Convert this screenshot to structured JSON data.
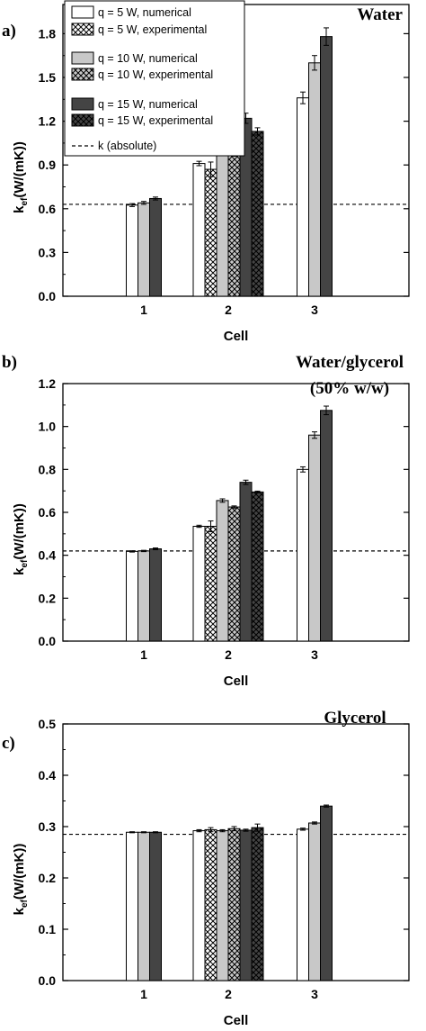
{
  "legend": {
    "entries": [
      {
        "label": "q = 5 W, numerical",
        "fill": "#ffffff",
        "pattern": false
      },
      {
        "label": "q = 5 W, experimental",
        "fill": "#ffffff",
        "pattern": true
      },
      {
        "label": "q = 10 W, numerical",
        "fill": "#c8c8c8",
        "pattern": false
      },
      {
        "label": "q = 10 W, experimental",
        "fill": "#c8c8c8",
        "pattern": true
      },
      {
        "label": "q = 15 W, numerical",
        "fill": "#444444",
        "pattern": false
      },
      {
        "label": "q  = 15 W, experimental",
        "fill": "#444444",
        "pattern": true
      },
      {
        "label": "k (absolute)",
        "line": true
      }
    ]
  },
  "colors": {
    "q5": "#ffffff",
    "q10": "#c8c8c8",
    "q15": "#444444",
    "axis": "#000000"
  },
  "chart_data": [
    {
      "type": "bar",
      "panel_label": "a)",
      "title": "Water",
      "xlabel": "Cell",
      "ylabel_main": "k",
      "ylabel_sub": "ef",
      "ylabel_rest": "(W/(mK))",
      "categories": [
        "1",
        "2",
        "3"
      ],
      "ylim": [
        0,
        2.0
      ],
      "yticks": [
        "0.0",
        "0.3",
        "0.6",
        "0.9",
        "1.2",
        "1.5",
        "1.8"
      ],
      "ytick_values": [
        0,
        0.3,
        0.6,
        0.9,
        1.2,
        1.5,
        1.8
      ],
      "reference_line": 0.63,
      "groups": [
        [
          {
            "series": "q5num",
            "value": 0.625,
            "err": 0.01
          },
          {
            "series": "q10num",
            "value": 0.64,
            "err": 0.01
          },
          {
            "series": "q15num",
            "value": 0.67,
            "err": 0.01
          }
        ],
        [
          {
            "series": "q5num",
            "value": 0.91,
            "err": 0.015
          },
          {
            "series": "q5exp",
            "value": 0.87,
            "err": 0.05
          },
          {
            "series": "q10num",
            "value": 1.09,
            "err": 0.025
          },
          {
            "series": "q10exp",
            "value": 1.03,
            "err": 0.07
          },
          {
            "series": "q15num",
            "value": 1.22,
            "err": 0.035
          },
          {
            "series": "q15exp",
            "value": 1.13,
            "err": 0.025
          }
        ],
        [
          {
            "series": "q5num",
            "value": 1.36,
            "err": 0.04
          },
          {
            "series": "q10num",
            "value": 1.6,
            "err": 0.05
          },
          {
            "series": "q15num",
            "value": 1.78,
            "err": 0.06
          }
        ]
      ]
    },
    {
      "type": "bar",
      "panel_label": "b)",
      "title": "Water/glycerol",
      "subtitle": "(50% w/w)",
      "xlabel": "Cell",
      "ylabel_main": "k",
      "ylabel_sub": "ef",
      "ylabel_rest": "(W/(mK))",
      "categories": [
        "1",
        "2",
        "3"
      ],
      "ylim": [
        0,
        1.2
      ],
      "yticks": [
        "0.0",
        "0.2",
        "0.4",
        "0.6",
        "0.8",
        "1.0",
        "1.2"
      ],
      "ytick_values": [
        0,
        0.2,
        0.4,
        0.6,
        0.8,
        1.0,
        1.2
      ],
      "reference_line": 0.42,
      "groups": [
        [
          {
            "series": "q5num",
            "value": 0.418,
            "err": 0.003
          },
          {
            "series": "q10num",
            "value": 0.42,
            "err": 0.003
          },
          {
            "series": "q15num",
            "value": 0.43,
            "err": 0.004
          }
        ],
        [
          {
            "series": "q5num",
            "value": 0.535,
            "err": 0.005
          },
          {
            "series": "q5exp",
            "value": 0.535,
            "err": 0.025
          },
          {
            "series": "q10num",
            "value": 0.655,
            "err": 0.008
          },
          {
            "series": "q10exp",
            "value": 0.625,
            "err": 0.005
          },
          {
            "series": "q15num",
            "value": 0.74,
            "err": 0.01
          },
          {
            "series": "q15exp",
            "value": 0.695,
            "err": 0.004
          }
        ],
        [
          {
            "series": "q5num",
            "value": 0.8,
            "err": 0.012
          },
          {
            "series": "q10num",
            "value": 0.96,
            "err": 0.015
          },
          {
            "series": "q15num",
            "value": 1.075,
            "err": 0.02
          }
        ]
      ]
    },
    {
      "type": "bar",
      "panel_label": "c)",
      "title": "Glycerol",
      "xlabel": "Cell",
      "ylabel_main": "k",
      "ylabel_sub": "ef",
      "ylabel_rest": "(W/(mK))",
      "categories": [
        "1",
        "2",
        "3"
      ],
      "ylim": [
        0,
        0.5
      ],
      "yticks": [
        "0.0",
        "0.1",
        "0.2",
        "0.3",
        "0.4",
        "0.5"
      ],
      "ytick_values": [
        0,
        0.1,
        0.2,
        0.3,
        0.4,
        0.5
      ],
      "reference_line": 0.285,
      "groups": [
        [
          {
            "series": "q5num",
            "value": 0.289,
            "err": 0.001
          },
          {
            "series": "q10num",
            "value": 0.289,
            "err": 0.001
          },
          {
            "series": "q15num",
            "value": 0.289,
            "err": 0.001
          }
        ],
        [
          {
            "series": "q5num",
            "value": 0.292,
            "err": 0.002
          },
          {
            "series": "q5exp",
            "value": 0.294,
            "err": 0.004
          },
          {
            "series": "q10num",
            "value": 0.292,
            "err": 0.002
          },
          {
            "series": "q10exp",
            "value": 0.296,
            "err": 0.004
          },
          {
            "series": "q15num",
            "value": 0.293,
            "err": 0.002
          },
          {
            "series": "q15exp",
            "value": 0.298,
            "err": 0.007
          }
        ],
        [
          {
            "series": "q5num",
            "value": 0.295,
            "err": 0.002
          },
          {
            "series": "q10num",
            "value": 0.307,
            "err": 0.002
          },
          {
            "series": "q15num",
            "value": 0.34,
            "err": 0.002
          }
        ]
      ]
    }
  ]
}
